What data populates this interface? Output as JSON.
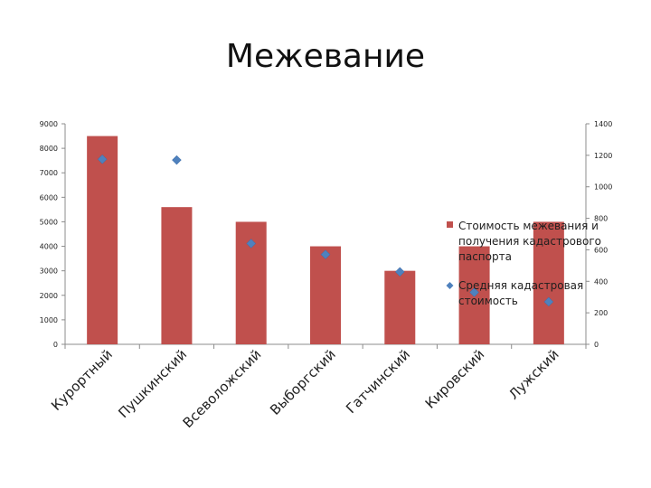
{
  "title": "Межевание",
  "chart_data": {
    "type": "bar",
    "title": "",
    "categories": [
      "Курортный",
      "Пушкинский",
      "Всеволожский",
      "Выборгский",
      "Гатчинский",
      "Кировский",
      "Лужский"
    ],
    "series": [
      {
        "name": "Стоимость межевания и получения кадастрового паспорта",
        "type": "bar",
        "axis": "left",
        "color": "#c0504d",
        "values": [
          8500,
          5600,
          5000,
          4000,
          3000,
          4000,
          5000
        ]
      },
      {
        "name": "Средняя кадастровая стоимость",
        "type": "scatter",
        "marker": "diamond",
        "axis": "right",
        "color": "#4f81bd",
        "values": [
          1175,
          1170,
          640,
          570,
          460,
          330,
          270
        ]
      }
    ],
    "y_left": {
      "min": 0,
      "max": 9000,
      "ticks": [
        0,
        1000,
        2000,
        3000,
        4000,
        5000,
        6000,
        7000,
        8000,
        9000
      ]
    },
    "y_right": {
      "min": 0,
      "max": 1400,
      "ticks": [
        0,
        200,
        400,
        600,
        800,
        1000,
        1200,
        1400
      ]
    },
    "grid": false,
    "legend_position": "right"
  }
}
